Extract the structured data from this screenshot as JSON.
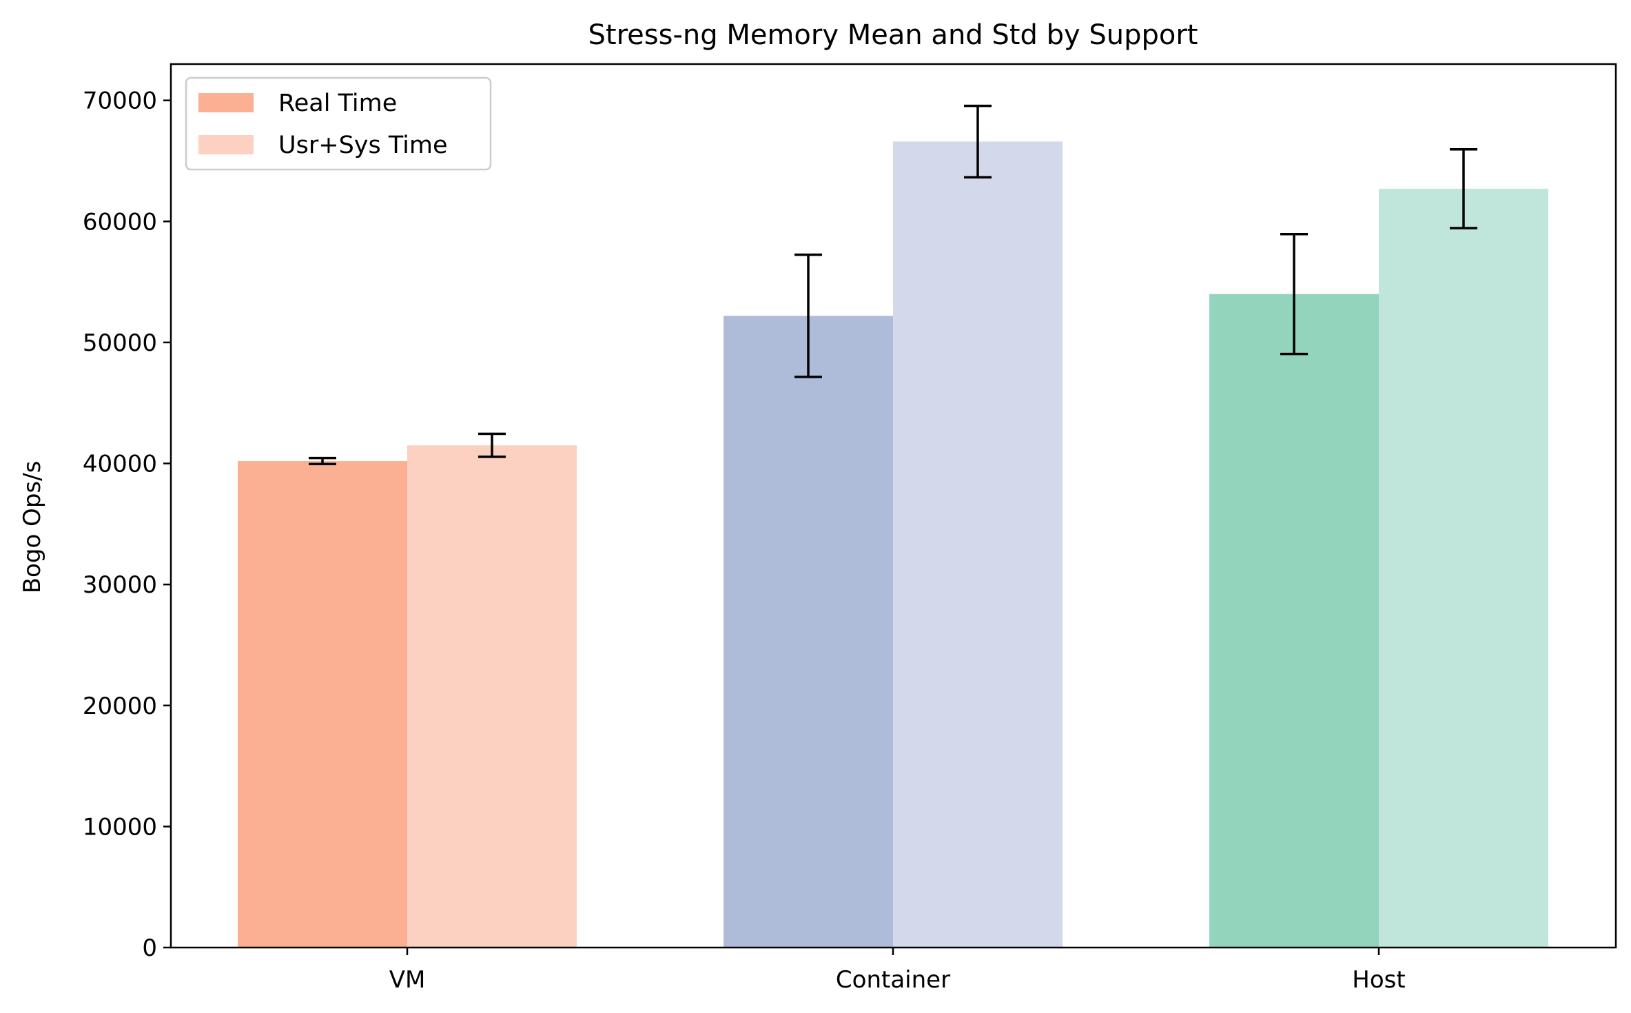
{
  "chart_data": {
    "type": "bar",
    "title": "Stress-ng Memory Mean and Std by Support",
    "xlabel": "",
    "ylabel": "Bogo Ops/s",
    "ylim": [
      0,
      73000
    ],
    "yticks": [
      0,
      10000,
      20000,
      30000,
      40000,
      50000,
      60000,
      70000
    ],
    "categories": [
      "VM",
      "Container",
      "Host"
    ],
    "series": [
      {
        "name": "Real Time",
        "values": [
          40200,
          52200,
          54000
        ],
        "std": [
          250,
          5050,
          4950
        ],
        "colors": [
          "#fcb093",
          "#afbcd9",
          "#93d4bd"
        ]
      },
      {
        "name": "Usr+Sys Time",
        "values": [
          41500,
          66600,
          62700
        ],
        "std": [
          950,
          2950,
          3250
        ],
        "colors": [
          "#fcd1c1",
          "#d3d9ea",
          "#c0e6db"
        ]
      }
    ],
    "legend": {
      "position": "top-left",
      "colors": [
        "#fcb093",
        "#fcd1c1"
      ]
    },
    "grid": false
  }
}
